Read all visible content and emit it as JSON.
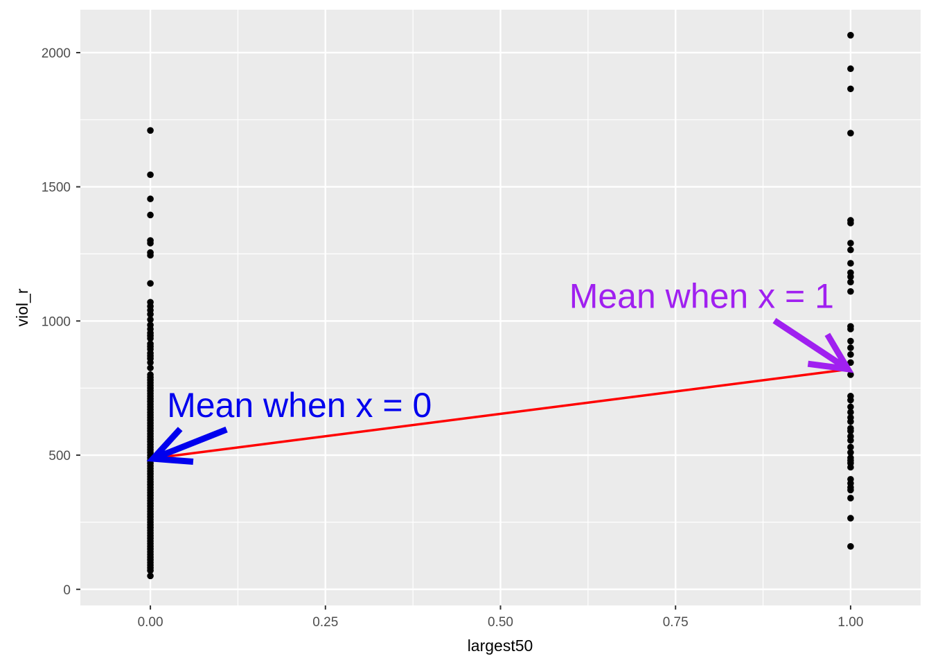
{
  "chart_data": {
    "type": "scatter",
    "title": "",
    "xlabel": "largest50",
    "ylabel": "viol_r",
    "xlim": [
      -0.1,
      1.1
    ],
    "ylim": [
      -60,
      2160
    ],
    "x_ticks": [
      0,
      0.25,
      0.5,
      0.75,
      1
    ],
    "x_tick_labels": [
      "0.00",
      "0.25",
      "0.50",
      "0.75",
      "1.00"
    ],
    "y_ticks": [
      0,
      500,
      1000,
      1500,
      2000
    ],
    "y_tick_labels": [
      "0",
      "500",
      "1000",
      "1500",
      "2000"
    ],
    "grid": true,
    "legend": "none",
    "series": [
      {
        "x": 0,
        "values": [
          1710,
          1545,
          1455,
          1395,
          1300,
          1290,
          1255,
          1245,
          1140,
          1070,
          1055,
          1040,
          1025,
          1005,
          985,
          970,
          955,
          945,
          935,
          915,
          905,
          895,
          880,
          870,
          860,
          845,
          825,
          800,
          790,
          780,
          770,
          760,
          750,
          740,
          730,
          720,
          710,
          700,
          690,
          680,
          670,
          660,
          650,
          640,
          630,
          620,
          610,
          600,
          590,
          580,
          570,
          560,
          550,
          540,
          530,
          520,
          510,
          500,
          490,
          480,
          470,
          460,
          450,
          440,
          430,
          420,
          410,
          400,
          390,
          380,
          370,
          360,
          350,
          340,
          330,
          320,
          310,
          300,
          290,
          280,
          270,
          260,
          250,
          240,
          230,
          220,
          210,
          200,
          190,
          180,
          170,
          160,
          150,
          140,
          130,
          120,
          110,
          100,
          90,
          80,
          70,
          50
        ]
      },
      {
        "x": 1,
        "values": [
          2065,
          1940,
          1865,
          1700,
          1375,
          1365,
          1290,
          1265,
          1215,
          1180,
          1165,
          1145,
          1110,
          980,
          970,
          925,
          900,
          875,
          845,
          800,
          720,
          705,
          680,
          660,
          640,
          625,
          600,
          590,
          570,
          555,
          530,
          510,
          490,
          480,
          470,
          455,
          410,
          395,
          380,
          370,
          340,
          265,
          160
        ]
      }
    ],
    "fit_line": {
      "x": [
        0,
        1
      ],
      "y": [
        487,
        821
      ],
      "color": "#ff0000"
    },
    "annotations": [
      {
        "text": "Mean when x = 0",
        "x": 0,
        "y": 487,
        "color": "#0000ee"
      },
      {
        "text": "Mean when x = 1",
        "x": 1,
        "y": 821,
        "color": "#a020f0"
      }
    ],
    "colors": {
      "panel": "#ebebeb",
      "grid": "#ffffff",
      "points": "#000000"
    }
  }
}
